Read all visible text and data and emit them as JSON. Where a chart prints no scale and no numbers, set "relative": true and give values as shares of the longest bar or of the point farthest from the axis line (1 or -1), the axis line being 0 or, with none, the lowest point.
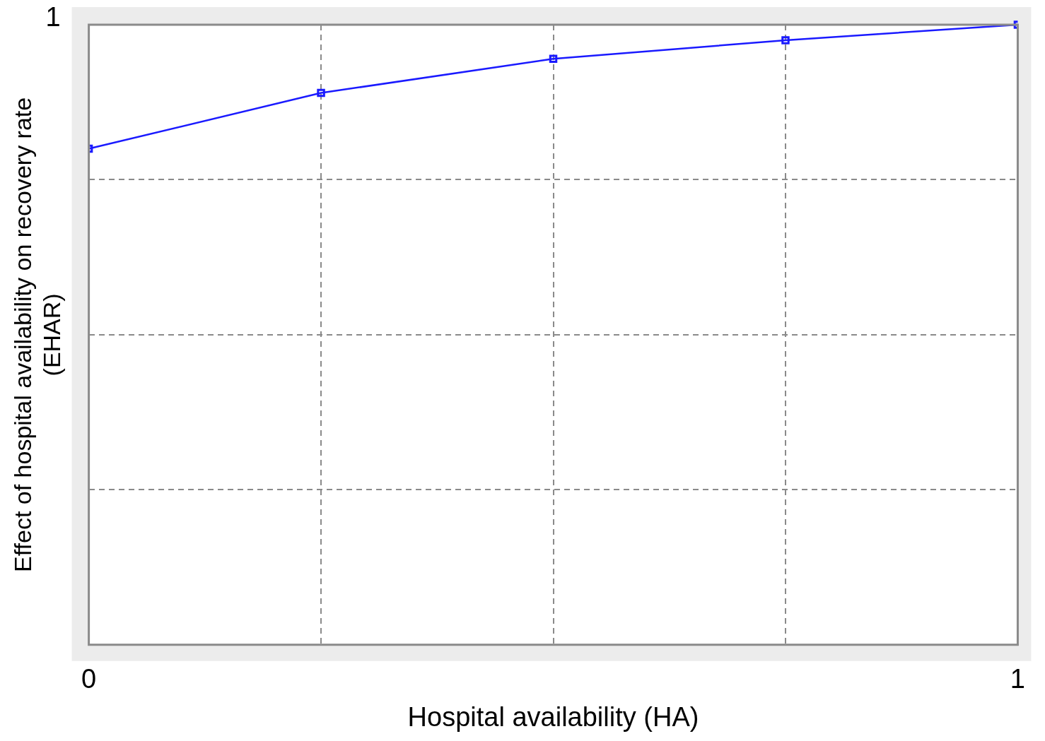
{
  "chart_data": {
    "type": "line",
    "xlabel": "Hospital availability (HA)",
    "ylabel": "Effect of hospital availability on recovery rate\n(EHAR)",
    "x": [
      0,
      0.25,
      0.5,
      0.75,
      1
    ],
    "series": [
      {
        "color": "#1a1aff",
        "values": [
          0.8,
          0.89,
          0.945,
          0.975,
          1
        ]
      }
    ],
    "relative": true,
    "xlim": [
      0,
      1
    ],
    "xticks": [
      0,
      {
        "value": 0.25,
        "label": null
      },
      {
        "value": 0.5,
        "label": null
      },
      {
        "value": 0.75,
        "label": null
      },
      1
    ],
    "annotations": [
      "1"
    ],
    "grid": true,
    "marker": "square",
    "line_style": "solid",
    "legend": false
  }
}
